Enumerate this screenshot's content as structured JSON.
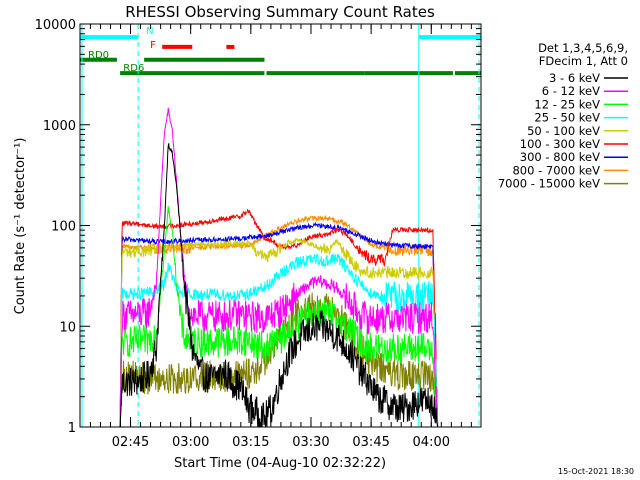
{
  "chart_data": {
    "type": "line",
    "title": "RHESSI Observing Summary Count Rates",
    "xlabel": "Start Time (04-Aug-10 02:32:22)",
    "ylabel": "Count Rate (s⁻¹ detector⁻¹)",
    "yscale": "log",
    "ylim": [
      1,
      10000
    ],
    "xlim_minutes": [
      0,
      100
    ],
    "x_tick_labels": [
      {
        "minute": 12.6,
        "label": "02:45"
      },
      {
        "minute": 27.6,
        "label": "03:00"
      },
      {
        "minute": 42.6,
        "label": "03:15"
      },
      {
        "minute": 57.6,
        "label": "03:30"
      },
      {
        "minute": 72.6,
        "label": "03:45"
      },
      {
        "minute": 87.6,
        "label": "04:00"
      }
    ],
    "y_tick_labels": [
      {
        "value": 1,
        "label": "1"
      },
      {
        "value": 10,
        "label": "10"
      },
      {
        "value": 100,
        "label": "100"
      },
      {
        "value": 1000,
        "label": "1000"
      },
      {
        "value": 10000,
        "label": "10000"
      }
    ],
    "legend_header": [
      "Det 1,3,4,5,6,9,",
      "FDecim 1, Att 0"
    ],
    "legend_position": "right",
    "footer_date": "15-Oct-2021 18:30",
    "observing_flags": [
      {
        "label": "N",
        "color": "#00ffff",
        "label_minute": 16.5,
        "label_value": 8500,
        "segments": [
          [
            0,
            14.5
          ],
          [
            84.5,
            100
          ]
        ]
      },
      {
        "label": "F",
        "color": "#ff0000",
        "label_minute": 17.5,
        "label_value": 6200,
        "segments": [
          [
            20.5,
            28
          ],
          [
            36.5,
            38.5
          ]
        ]
      },
      {
        "label": "RD0",
        "color": "#008000",
        "label_minute": 2.0,
        "label_value": 4950,
        "segments": [
          [
            0,
            9.2
          ],
          [
            16,
            46
          ]
        ]
      },
      {
        "label": "RD6",
        "color": "#008000",
        "label_minute": 10.8,
        "label_value": 3650,
        "segments": [
          [
            10,
            46
          ],
          [
            46.5,
            71
          ],
          [
            71,
            93
          ],
          [
            93.5,
            100
          ]
        ]
      }
    ],
    "observation_markers": [
      {
        "minute": 0.5,
        "color": "#00ffff",
        "style": "solid"
      },
      {
        "minute": 14.5,
        "color": "#00ffff",
        "style": "dashed"
      },
      {
        "minute": 84.5,
        "color": "#00ffff",
        "style": "solid"
      },
      {
        "minute": 99.5,
        "color": "#00ffff",
        "style": "dashed"
      }
    ],
    "series": [
      {
        "name": "3 - 6 keV",
        "color": "#000000",
        "x": [
          10,
          10.5,
          14,
          17,
          19,
          21,
          22,
          23,
          24,
          25,
          26,
          28,
          30,
          32,
          34,
          36,
          38,
          40,
          42,
          46,
          48,
          50,
          52,
          54,
          56,
          58,
          60,
          62,
          64,
          66,
          68,
          70,
          72,
          74,
          76,
          78,
          80,
          82,
          84,
          86,
          88,
          89.2
        ],
        "y": [
          1,
          2.8,
          2.8,
          3.2,
          6,
          90,
          650,
          520,
          260,
          90,
          25,
          6,
          3.5,
          3,
          3.2,
          3.5,
          2.8,
          2.5,
          1.6,
          1.2,
          1.6,
          3,
          5,
          7,
          8.5,
          9.5,
          10,
          9,
          8,
          6.5,
          5,
          3.5,
          2.8,
          2,
          1.8,
          1.6,
          1.5,
          1.6,
          1.8,
          1.8,
          1.8,
          1
        ]
      },
      {
        "name": "6 - 12 keV",
        "color": "#ff00ff",
        "x": [
          10,
          10.5,
          14,
          17,
          19,
          21,
          22,
          23,
          24,
          25,
          26,
          27,
          28,
          30,
          35,
          40,
          42,
          46,
          50,
          54,
          56,
          58,
          60,
          62,
          64,
          66,
          68,
          70,
          72,
          74,
          76,
          80,
          84,
          88,
          89.2
        ],
        "y": [
          1,
          13,
          13,
          13.5,
          25,
          800,
          1400,
          900,
          300,
          90,
          30,
          16,
          13,
          12.5,
          12.5,
          13,
          12.5,
          12,
          14,
          20,
          24,
          27,
          28,
          26,
          24,
          20,
          16,
          13,
          12,
          12,
          12,
          12,
          12,
          12.5,
          1
        ]
      },
      {
        "name": "12 - 25 keV",
        "color": "#00ff00",
        "x": [
          10,
          10.5,
          14,
          17,
          19,
          21,
          22,
          23,
          24,
          25,
          26,
          27,
          28,
          30,
          35,
          40,
          42,
          46,
          50,
          54,
          56,
          58,
          60,
          62,
          64,
          66,
          68,
          70,
          72,
          74,
          76,
          80,
          84,
          88,
          89.2
        ],
        "y": [
          1,
          7,
          7,
          7.2,
          9,
          50,
          150,
          90,
          30,
          12,
          8,
          7.3,
          7,
          7,
          7,
          7.2,
          7.4,
          6,
          7.5,
          10,
          12,
          13.5,
          14,
          13,
          12,
          10,
          8.5,
          7,
          6.2,
          6,
          6,
          6,
          6,
          6,
          1
        ]
      },
      {
        "name": "25 - 50 keV",
        "color": "#00ffff",
        "x": [
          10,
          10.5,
          14,
          17,
          19,
          21,
          22,
          23,
          24,
          25,
          26,
          27,
          28,
          30,
          35,
          40,
          42,
          46,
          48,
          50,
          52,
          54,
          56,
          58,
          60,
          62,
          64,
          66,
          68,
          70,
          72,
          74,
          76,
          80,
          84,
          88,
          89.2
        ],
        "y": [
          1,
          21,
          21,
          21.5,
          22,
          26,
          40,
          32,
          24,
          22,
          21.5,
          21,
          21,
          20.5,
          20.5,
          20,
          21,
          24,
          28,
          33,
          38,
          42,
          45,
          46,
          45,
          44,
          48,
          40,
          32,
          26,
          22,
          20.5,
          19.5,
          19.5,
          19.5,
          20,
          1
        ]
      },
      {
        "name": "50 - 100 keV",
        "color": "#cccc00",
        "x": [
          10,
          10.5,
          14,
          17,
          19,
          21,
          24,
          28,
          32,
          36,
          40,
          42,
          46,
          48,
          50,
          52,
          54,
          56,
          58,
          60,
          62,
          64,
          66,
          68,
          70,
          72,
          74,
          76,
          80,
          84,
          88,
          89.2
        ],
        "y": [
          1,
          55,
          55,
          56,
          58,
          60,
          62,
          64,
          65,
          66,
          66,
          67,
          48,
          52,
          60,
          68,
          72,
          70,
          64,
          60,
          58,
          70,
          55,
          42,
          36,
          34,
          34,
          34,
          34,
          34,
          34,
          1
        ]
      },
      {
        "name": "100 - 300 keV",
        "color": "#ff0000",
        "x": [
          10,
          10.5,
          14,
          17,
          19,
          21,
          24,
          28,
          32,
          36,
          40,
          42,
          46,
          48,
          50,
          52,
          54,
          56,
          58,
          60,
          62,
          64,
          66,
          68,
          70,
          72,
          74,
          76,
          78,
          80,
          84,
          88,
          89.2
        ],
        "y": [
          1,
          105,
          105,
          100,
          98,
          98,
          100,
          104,
          110,
          115,
          125,
          140,
          75,
          70,
          62,
          60,
          64,
          72,
          78,
          80,
          82,
          90,
          85,
          68,
          55,
          48,
          45,
          46,
          90,
          90,
          90,
          90,
          1
        ]
      },
      {
        "name": "300 - 800 keV",
        "color": "#0000ff",
        "x": [
          10,
          10.5,
          14,
          17,
          19,
          21,
          24,
          28,
          32,
          36,
          40,
          42,
          46,
          48,
          50,
          52,
          54,
          56,
          58,
          60,
          62,
          64,
          66,
          68,
          70,
          72,
          74,
          76,
          78,
          80,
          84,
          88,
          89.2
        ],
        "y": [
          1,
          73,
          72,
          70,
          69,
          69,
          70,
          71,
          72,
          73,
          74,
          76,
          78,
          82,
          86,
          90,
          94,
          97,
          99,
          100,
          98,
          95,
          90,
          84,
          78,
          72,
          68,
          66,
          64,
          63,
          62,
          62,
          1
        ]
      },
      {
        "name": "800 - 7000 keV",
        "color": "#ff8c00",
        "x": [
          10,
          10.5,
          14,
          17,
          19,
          21,
          24,
          28,
          32,
          36,
          40,
          42,
          46,
          48,
          50,
          52,
          54,
          56,
          58,
          60,
          62,
          64,
          66,
          68,
          70,
          72,
          74,
          76,
          78,
          80,
          84,
          88,
          89.2
        ],
        "y": [
          1,
          62,
          61,
          60,
          59,
          59,
          59,
          60,
          61,
          62,
          63,
          64,
          78,
          86,
          94,
          102,
          110,
          115,
          118,
          118,
          116,
          112,
          104,
          92,
          80,
          68,
          62,
          60,
          58,
          57,
          57,
          57,
          1
        ]
      },
      {
        "name": "7000 - 15000 keV",
        "color": "#808000",
        "x": [
          10,
          10.5,
          14,
          17,
          19,
          21,
          24,
          28,
          32,
          36,
          40,
          42,
          44,
          46,
          48,
          50,
          52,
          54,
          56,
          58,
          60,
          62,
          64,
          66,
          68,
          70,
          72,
          74,
          76,
          78,
          80,
          84,
          88,
          89.2
        ],
        "y": [
          1,
          3.2,
          3.2,
          3,
          3,
          3,
          3,
          3.1,
          3.2,
          3.2,
          3.3,
          3.4,
          3.8,
          4.5,
          6,
          8,
          10,
          12.5,
          14.5,
          15.5,
          15.5,
          14.5,
          13,
          10.5,
          8,
          6,
          4.8,
          4,
          3.6,
          3.4,
          3.3,
          3.2,
          3.2,
          1
        ]
      }
    ]
  }
}
